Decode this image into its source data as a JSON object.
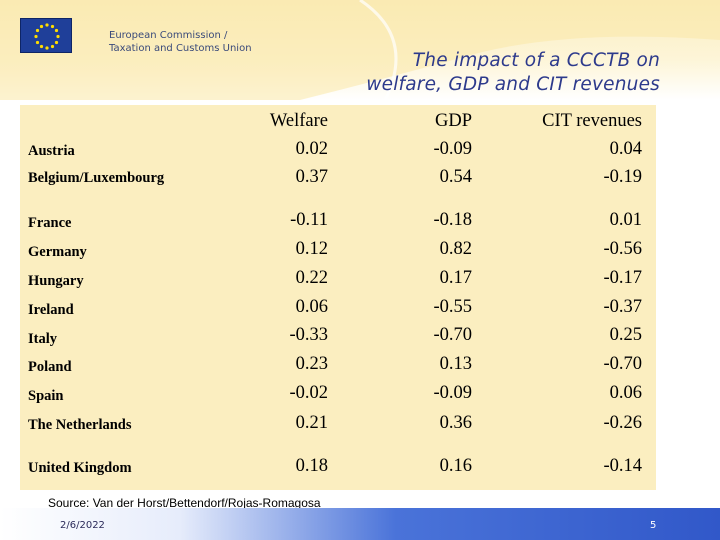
{
  "header": {
    "org_line_1": "European Commission /",
    "org_line_2": "Taxation and Customs Union",
    "title_line_1": "The impact of a CCCTB on",
    "title_line_2": "welfare, GDP and CIT revenues"
  },
  "table": {
    "columns": [
      "Welfare",
      "GDP",
      "CIT revenues"
    ],
    "rows": [
      {
        "country": "Austria",
        "welfare": "0.02",
        "gdp": "-0.09",
        "cit": "0.04"
      },
      {
        "country": "Belgium/Luxembourg",
        "welfare": "0.37",
        "gdp": "0.54",
        "cit": "-0.19"
      },
      {
        "country": "France",
        "welfare": "-0.11",
        "gdp": "-0.18",
        "cit": "0.01"
      },
      {
        "country": "Germany",
        "welfare": "0.12",
        "gdp": "0.82",
        "cit": "-0.56"
      },
      {
        "country": "Hungary",
        "welfare": "0.22",
        "gdp": "0.17",
        "cit": "-0.17"
      },
      {
        "country": "Ireland",
        "welfare": "0.06",
        "gdp": "-0.55",
        "cit": "-0.37"
      },
      {
        "country": "Italy",
        "welfare": "-0.33",
        "gdp": "-0.70",
        "cit": "0.25"
      },
      {
        "country": "Poland",
        "welfare": "0.23",
        "gdp": "0.13",
        "cit": "-0.70"
      },
      {
        "country": "Spain",
        "welfare": "-0.02",
        "gdp": "-0.09",
        "cit": "0.06"
      },
      {
        "country": "The Netherlands",
        "welfare": "0.21",
        "gdp": "0.36",
        "cit": "-0.26"
      },
      {
        "country": "United Kingdom",
        "welfare": "0.18",
        "gdp": "0.16",
        "cit": "-0.14"
      }
    ]
  },
  "source": "Source: Van der Horst/Bettendorf/Rojas-Romagosa",
  "footer": {
    "date": "2/6/2022",
    "page": "5"
  },
  "colors": {
    "panel": "#fbeec0",
    "title": "#2d3a8c",
    "flag_blue": "#1f3f99",
    "flag_star": "#ffdd00",
    "footer_blue": "#3158c9"
  },
  "icons": {
    "logo": "eu-flag-icon"
  }
}
